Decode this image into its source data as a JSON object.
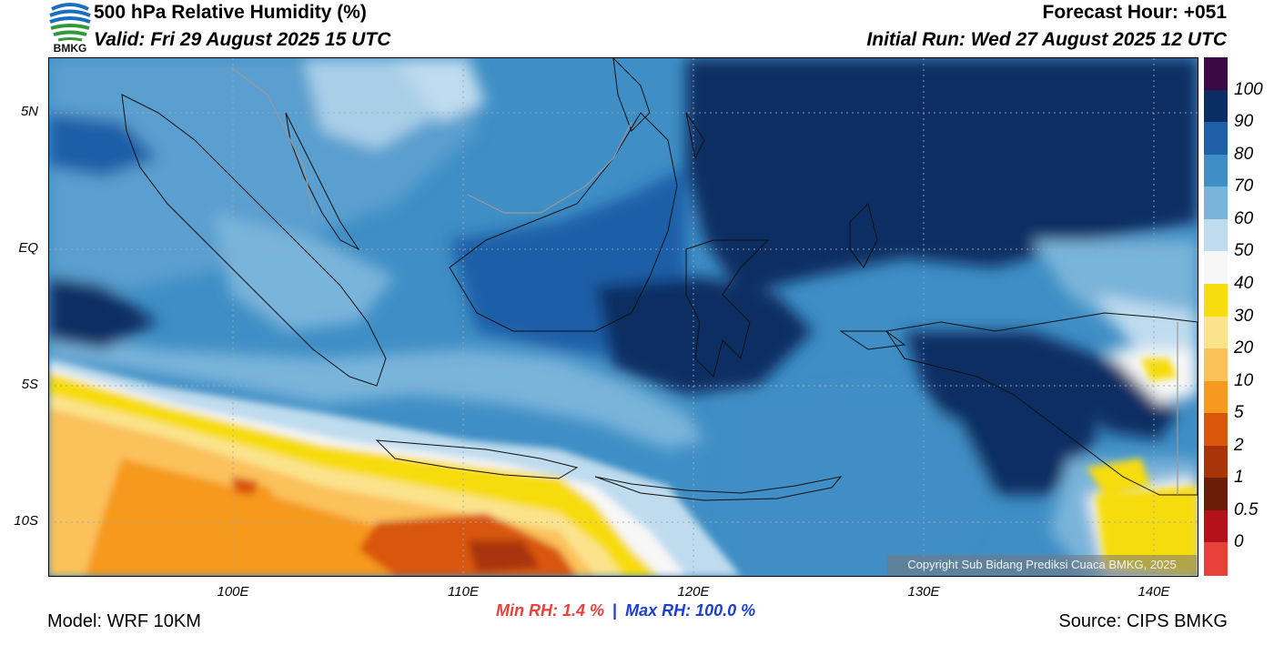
{
  "header": {
    "title": "500 hPa Relative Humidity (%)",
    "valid": "Valid: Fri 29 August 2025 15 UTC",
    "forecast_hour": "Forecast Hour: +051",
    "initial_run": "Initial Run: Wed 27 August 2025 12 UTC",
    "logo_text": "BMKG"
  },
  "axes": {
    "lat_labels": [
      "5N",
      "EQ",
      "5S",
      "10S"
    ],
    "lon_labels": [
      "100E",
      "110E",
      "120E",
      "130E",
      "140E"
    ]
  },
  "colorbar": {
    "labels": [
      "100",
      "90",
      "80",
      "70",
      "60",
      "50",
      "40",
      "30",
      "20",
      "10",
      "5",
      "2",
      "1",
      "0.5",
      "0"
    ],
    "colors": [
      "#3b0a45",
      "#0a2d63",
      "#1f5fa8",
      "#3f8ec5",
      "#79b4da",
      "#bfdcee",
      "#f7f7f7",
      "#f7dc0e",
      "#fbe38d",
      "#fbc15a",
      "#f6991f",
      "#d9560b",
      "#a8340a",
      "#6b1d07",
      "#b5111a",
      "#e8413a"
    ]
  },
  "stats": {
    "min_label": "Min RH:",
    "min_value": "1.4 %",
    "separator": "|",
    "max_label": "Max RH:",
    "max_value": "100.0 %",
    "min_color": "#e8413a",
    "max_color": "#1a3fd1"
  },
  "footer": {
    "model": "Model: WRF 10KM",
    "source": "Source: CIPS BMKG",
    "copyright": "Copyright Sub Bidang Prediksi Cuaca BMKG, 2025"
  }
}
